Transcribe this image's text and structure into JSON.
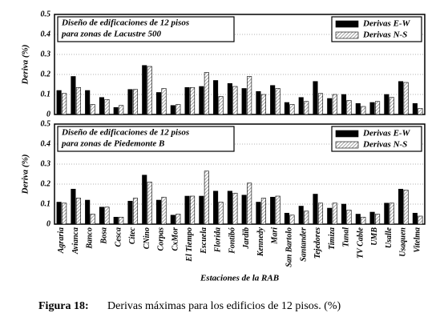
{
  "chart_data": [
    {
      "type": "bar",
      "title": [
        "Diseño de edificaciones de 12 pisos",
        "para zonas de Lacustre 500"
      ],
      "y_label": "Deriva (%)",
      "ylim": [
        0,
        0.5
      ],
      "yticks": [
        0,
        0.1,
        0.2,
        0.3,
        0.4,
        0.5
      ],
      "grid": true,
      "legend": "upper right",
      "series": [
        {
          "name": "Derivas E-W",
          "color": "#000000",
          "values": [
            0.12,
            0.19,
            0.12,
            0.085,
            0.035,
            0.125,
            0.245,
            0.11,
            0.045,
            0.135,
            0.14,
            0.17,
            0.155,
            0.13,
            0.115,
            0.145,
            0.06,
            0.085,
            0.165,
            0.08,
            0.1,
            0.055,
            0.06,
            0.1,
            0.165,
            0.055
          ]
        },
        {
          "name": "Derivas N-S",
          "color": "#888888",
          "values": [
            0.105,
            0.135,
            0.05,
            0.075,
            0.045,
            0.125,
            0.24,
            0.13,
            0.05,
            0.135,
            0.21,
            0.09,
            0.14,
            0.19,
            0.1,
            0.13,
            0.05,
            0.065,
            0.105,
            0.1,
            0.07,
            0.04,
            0.065,
            0.085,
            0.16,
            0.03
          ]
        }
      ]
    },
    {
      "type": "bar",
      "title": [
        "Diseño de edificaciones de 12 pisos",
        "para zonas de Piedemonte B"
      ],
      "y_label": "Deriva (%)",
      "x_label": "Estaciones de la RAB",
      "categories": [
        "Agraria",
        "Avianca",
        "Banco",
        "Bosa",
        "Cesca",
        "Citec",
        "CNino",
        "Corpas",
        "CxMor",
        "El Tiempo",
        "Escuela",
        "Florida",
        "Fontibó",
        "Jardib",
        "Kennedy",
        "Mari",
        "San Bartolo",
        "Santander",
        "Tejedores",
        "Timiza",
        "Tunal",
        "TV Cable",
        "UMB",
        "Usalle",
        "Usaquen",
        "Vitelma"
      ],
      "ylim": [
        0,
        0.5
      ],
      "yticks": [
        0,
        0.1,
        0.2,
        0.3,
        0.4,
        0.5
      ],
      "grid": true,
      "legend": "upper right",
      "series": [
        {
          "name": "Derivas E-W",
          "color": "#000000",
          "values": [
            0.11,
            0.175,
            0.12,
            0.085,
            0.035,
            0.115,
            0.245,
            0.12,
            0.045,
            0.14,
            0.14,
            0.165,
            0.165,
            0.145,
            0.11,
            0.135,
            0.055,
            0.09,
            0.15,
            0.08,
            0.1,
            0.05,
            0.06,
            0.105,
            0.175,
            0.055
          ]
        },
        {
          "name": "Derivas N-S",
          "color": "#888888",
          "values": [
            0.105,
            0.13,
            0.05,
            0.085,
            0.035,
            0.13,
            0.21,
            0.135,
            0.05,
            0.14,
            0.265,
            0.11,
            0.155,
            0.205,
            0.13,
            0.14,
            0.045,
            0.065,
            0.105,
            0.105,
            0.07,
            0.035,
            0.05,
            0.105,
            0.17,
            0.04
          ]
        }
      ]
    }
  ],
  "caption": {
    "label": "Figura 18:",
    "text": "Derivas máximas para los edificios de 12 pisos. (%)"
  }
}
